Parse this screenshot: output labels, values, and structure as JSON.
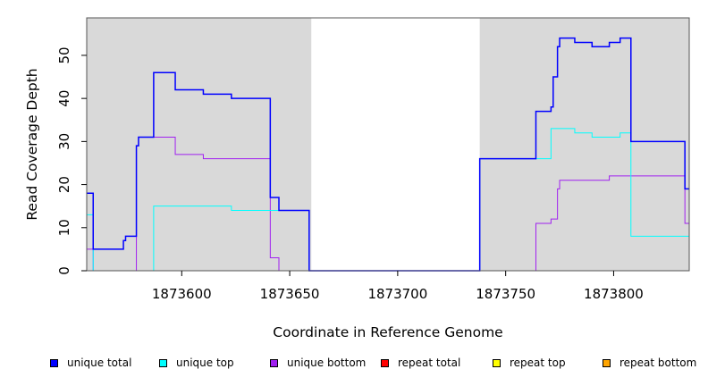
{
  "chart_data": {
    "type": "line",
    "title": "",
    "xlabel": "Coordinate in Reference Genome",
    "ylabel": "Read Coverage Depth",
    "xlim": [
      1873556,
      1873835
    ],
    "ylim": [
      0,
      58.7
    ],
    "x_ticks": [
      1873600,
      1873650,
      1873700,
      1873750,
      1873800
    ],
    "x_tick_labels": [
      "1873600",
      "1873650",
      "1873700",
      "1873750",
      "1873800"
    ],
    "y_ticks": [
      0,
      10,
      20,
      30,
      40,
      50
    ],
    "y_tick_labels": [
      "0",
      "10",
      "20",
      "30",
      "40",
      "50"
    ],
    "background_regions": [
      {
        "x0": 1873556,
        "x1": 1873660,
        "color": "#d9d9d9"
      },
      {
        "x0": 1873738,
        "x1": 1873835,
        "color": "#d9d9d9"
      }
    ],
    "grid": false,
    "legend_placement": "bottom",
    "series": [
      {
        "name": "unique total",
        "color": "#0000ff",
        "steps": [
          [
            1873556,
            18
          ],
          [
            1873559,
            5
          ],
          [
            1873573,
            7
          ],
          [
            1873574,
            8
          ],
          [
            1873579,
            29
          ],
          [
            1873580,
            31
          ],
          [
            1873587,
            46
          ],
          [
            1873597,
            42
          ],
          [
            1873610,
            41
          ],
          [
            1873623,
            40
          ],
          [
            1873641,
            17
          ],
          [
            1873645,
            14
          ],
          [
            1873659,
            0
          ],
          [
            1873738,
            26
          ],
          [
            1873764,
            37
          ],
          [
            1873771,
            38
          ],
          [
            1873772,
            45
          ],
          [
            1873774,
            52
          ],
          [
            1873775,
            54
          ],
          [
            1873782,
            53
          ],
          [
            1873790,
            52
          ],
          [
            1873798,
            53
          ],
          [
            1873803,
            54
          ],
          [
            1873808,
            30
          ],
          [
            1873833,
            19
          ],
          [
            1873835,
            19
          ]
        ]
      },
      {
        "name": "unique top",
        "color": "#00ffff",
        "steps": [
          [
            1873556,
            13
          ],
          [
            1873559,
            0
          ],
          [
            1873587,
            15
          ],
          [
            1873623,
            14
          ],
          [
            1873659,
            0
          ],
          [
            1873738,
            26
          ],
          [
            1873771,
            33
          ],
          [
            1873782,
            32
          ],
          [
            1873790,
            31
          ],
          [
            1873803,
            32
          ],
          [
            1873808,
            8
          ],
          [
            1873835,
            8
          ]
        ]
      },
      {
        "name": "unique bottom",
        "color": "#a020f0",
        "steps": [
          [
            1873556,
            5
          ],
          [
            1873559,
            0
          ],
          [
            1873579,
            29
          ],
          [
            1873580,
            31
          ],
          [
            1873597,
            27
          ],
          [
            1873610,
            26
          ],
          [
            1873641,
            3
          ],
          [
            1873645,
            0
          ],
          [
            1873764,
            11
          ],
          [
            1873771,
            12
          ],
          [
            1873774,
            19
          ],
          [
            1873775,
            21
          ],
          [
            1873798,
            22
          ],
          [
            1873833,
            11
          ],
          [
            1873835,
            11
          ]
        ]
      },
      {
        "name": "repeat total",
        "color": "#ff0000",
        "steps": [
          [
            1873556,
            0
          ],
          [
            1873835,
            0
          ]
        ]
      },
      {
        "name": "repeat top",
        "color": "#ffff00",
        "steps": [
          [
            1873556,
            0
          ],
          [
            1873835,
            0
          ]
        ]
      },
      {
        "name": "repeat bottom",
        "color": "#ffa500",
        "steps": [
          [
            1873556,
            0
          ],
          [
            1873835,
            0
          ]
        ]
      }
    ]
  }
}
